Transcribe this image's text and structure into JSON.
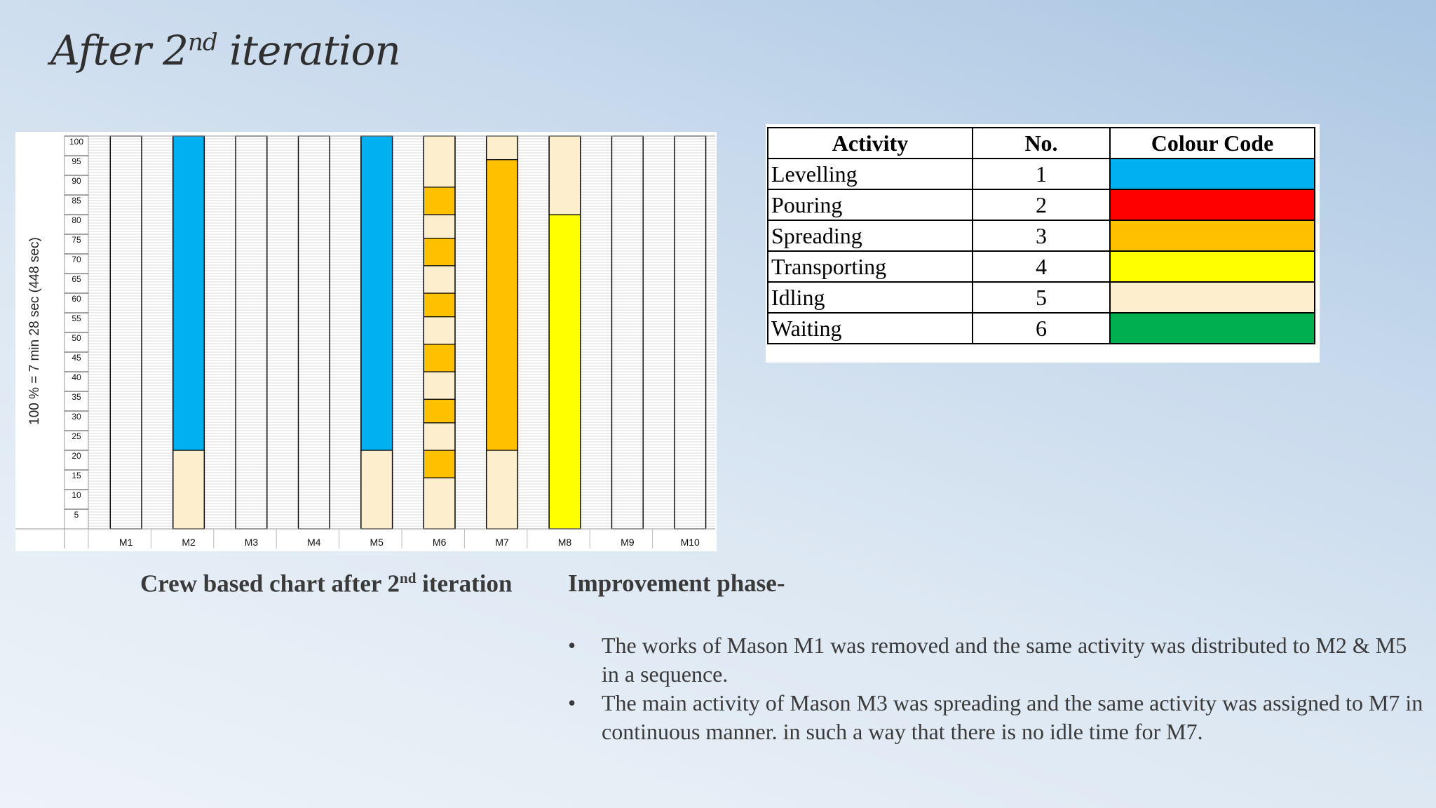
{
  "slide": {
    "title_main": "After 2",
    "title_sup": "nd",
    "title_rest": " iteration",
    "caption_main": "Crew based chart after 2",
    "caption_sup": "nd",
    "caption_rest": " iteration",
    "improvement_title": "Improvement phase-",
    "bullet_char": "•",
    "bullets": [
      "The works of Mason M1 was removed and the same activity was distributed to M2 & M5 in a sequence.",
      "The main activity of Mason M3 was spreading and the same activity was assigned to M7 in continuous manner. in such a way that there is no idle time for M7."
    ]
  },
  "legend": {
    "headers": [
      "Activity",
      "No.",
      "Colour Code"
    ],
    "rows": [
      {
        "activity": "Levelling",
        "no": "1",
        "color": "#00b0f0"
      },
      {
        "activity": "Pouring",
        "no": "2",
        "color": "#ff0000"
      },
      {
        "activity": "Spreading",
        "no": "3",
        "color": "#ffc000"
      },
      {
        "activity": "Transporting",
        "no": "4",
        "color": "#ffff00"
      },
      {
        "activity": "Idling",
        "no": "5",
        "color": "#fdefcd"
      },
      {
        "activity": "Waiting",
        "no": "6",
        "color": "#00b050"
      }
    ]
  },
  "chart_data": {
    "type": "bar",
    "stacked": true,
    "ylabel": "100 % = 7 min 28 sec (448 sec)",
    "ylim": [
      0,
      100
    ],
    "yticks": [
      5,
      10,
      15,
      20,
      25,
      30,
      35,
      40,
      45,
      50,
      55,
      60,
      65,
      70,
      75,
      80,
      85,
      90,
      95,
      100
    ],
    "categories": [
      "M1",
      "M2",
      "M3",
      "M4",
      "M5",
      "M6",
      "M7",
      "M8",
      "M9",
      "M10"
    ],
    "segments": {
      "M1": [],
      "M2": [
        {
          "from": 0,
          "to": 20,
          "activity": "Idling"
        },
        {
          "from": 20,
          "to": 100,
          "activity": "Levelling"
        }
      ],
      "M3": [],
      "M4": [],
      "M5": [
        {
          "from": 0,
          "to": 20,
          "activity": "Idling"
        },
        {
          "from": 20,
          "to": 100,
          "activity": "Levelling"
        }
      ],
      "M6": [
        {
          "from": 0,
          "to": 13,
          "activity": "Idling"
        },
        {
          "from": 13,
          "to": 20,
          "activity": "Spreading"
        },
        {
          "from": 20,
          "to": 27,
          "activity": "Idling"
        },
        {
          "from": 27,
          "to": 33,
          "activity": "Spreading"
        },
        {
          "from": 33,
          "to": 40,
          "activity": "Idling"
        },
        {
          "from": 40,
          "to": 47,
          "activity": "Spreading"
        },
        {
          "from": 47,
          "to": 54,
          "activity": "Idling"
        },
        {
          "from": 54,
          "to": 60,
          "activity": "Spreading"
        },
        {
          "from": 60,
          "to": 67,
          "activity": "Idling"
        },
        {
          "from": 67,
          "to": 74,
          "activity": "Spreading"
        },
        {
          "from": 74,
          "to": 80,
          "activity": "Idling"
        },
        {
          "from": 80,
          "to": 87,
          "activity": "Spreading"
        },
        {
          "from": 87,
          "to": 100,
          "activity": "Idling"
        }
      ],
      "M7": [
        {
          "from": 0,
          "to": 20,
          "activity": "Idling"
        },
        {
          "from": 20,
          "to": 94,
          "activity": "Spreading"
        },
        {
          "from": 94,
          "to": 100,
          "activity": "Idling"
        }
      ],
      "M8": [
        {
          "from": 0,
          "to": 80,
          "activity": "Transporting"
        },
        {
          "from": 80,
          "to": 100,
          "activity": "Idling"
        }
      ],
      "M9": [],
      "M10": []
    }
  }
}
